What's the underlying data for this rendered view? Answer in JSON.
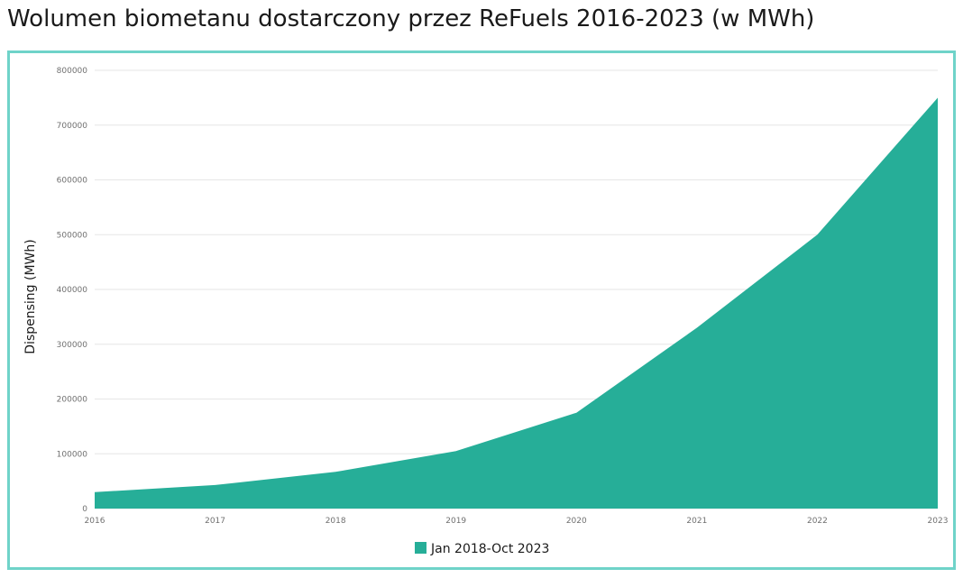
{
  "title": "Wolumen biometanu dostarczony przez ReFuels 2016-2023 (w MWh)",
  "colors": {
    "area": "#26ae98",
    "frame": "#6fd3c9",
    "grid": "#e6e6e6"
  },
  "chart_data": {
    "type": "area",
    "x": [
      "2016",
      "2017",
      "2018",
      "2019",
      "2020",
      "2021",
      "2022",
      "2023"
    ],
    "series": [
      {
        "name": "Jan 2018-Oct 2023",
        "values": [
          30000,
          43000,
          67000,
          105000,
          175000,
          330000,
          500000,
          750000
        ]
      }
    ],
    "ylabel": "Dispensing (MWh)",
    "xlabel": "",
    "ylim": [
      0,
      800000
    ],
    "yticks": [
      "0",
      "100000",
      "200000",
      "300000",
      "400000",
      "500000",
      "600000",
      "700000",
      "800000"
    ],
    "grid": true,
    "legend": "bottom-center"
  }
}
